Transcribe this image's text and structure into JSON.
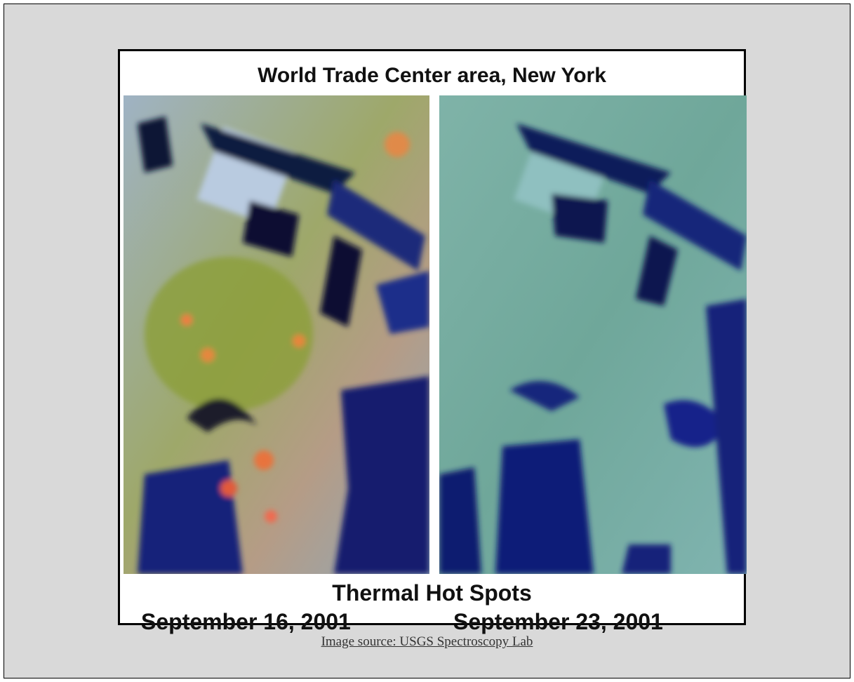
{
  "image": {
    "title": "World Trade Center area, New York",
    "caption": "Thermal Hot Spots",
    "dates": [
      "September 16, 2001",
      "September 23, 2001"
    ]
  },
  "source_link": "Image source: USGS Spectroscopy Lab"
}
